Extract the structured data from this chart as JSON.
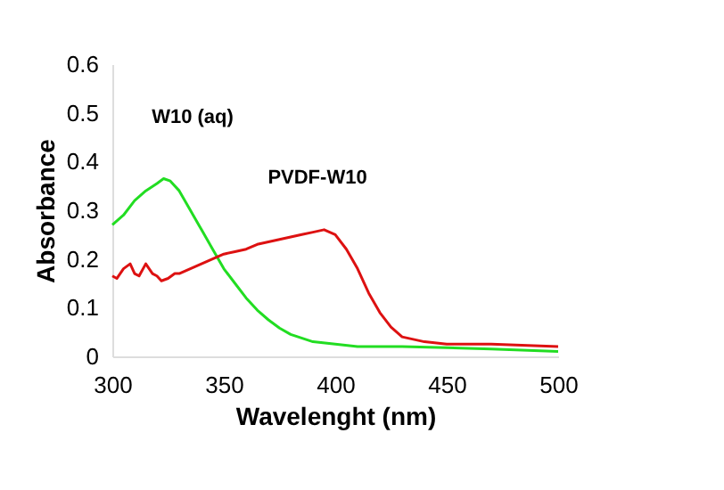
{
  "chart_data": {
    "type": "line",
    "xlabel": "Wavelenght (nm)",
    "ylabel": "Absorbance",
    "xlim": [
      300,
      500
    ],
    "ylim": [
      0,
      0.6
    ],
    "xticks": [
      300,
      350,
      400,
      450,
      500
    ],
    "yticks": [
      0,
      0.1,
      0.2,
      0.3,
      0.4,
      0.5,
      0.6
    ],
    "marker": "none",
    "line_style": "solid",
    "series": [
      {
        "name": "W10 (aq)",
        "color": "#22dd22",
        "x": [
          300,
          305,
          310,
          315,
          320,
          323,
          326,
          330,
          335,
          340,
          345,
          350,
          355,
          360,
          365,
          370,
          375,
          380,
          390,
          400,
          410,
          430,
          450,
          470,
          500
        ],
        "values": [
          0.27,
          0.29,
          0.32,
          0.34,
          0.355,
          0.365,
          0.36,
          0.34,
          0.3,
          0.26,
          0.22,
          0.18,
          0.15,
          0.12,
          0.095,
          0.075,
          0.058,
          0.045,
          0.03,
          0.025,
          0.02,
          0.02,
          0.018,
          0.015,
          0.01
        ]
      },
      {
        "name": "PVDF-W10",
        "color": "#dd1111",
        "x": [
          300,
          302,
          305,
          308,
          310,
          312,
          315,
          318,
          320,
          322,
          325,
          328,
          330,
          335,
          340,
          345,
          350,
          355,
          360,
          365,
          370,
          375,
          380,
          385,
          390,
          395,
          400,
          405,
          410,
          415,
          420,
          425,
          430,
          440,
          450,
          470,
          500
        ],
        "values": [
          0.165,
          0.16,
          0.18,
          0.19,
          0.17,
          0.165,
          0.19,
          0.17,
          0.165,
          0.155,
          0.16,
          0.17,
          0.17,
          0.18,
          0.19,
          0.2,
          0.21,
          0.215,
          0.22,
          0.23,
          0.235,
          0.24,
          0.245,
          0.25,
          0.255,
          0.26,
          0.25,
          0.22,
          0.18,
          0.13,
          0.09,
          0.06,
          0.04,
          0.03,
          0.025,
          0.025,
          0.02
        ]
      }
    ]
  }
}
